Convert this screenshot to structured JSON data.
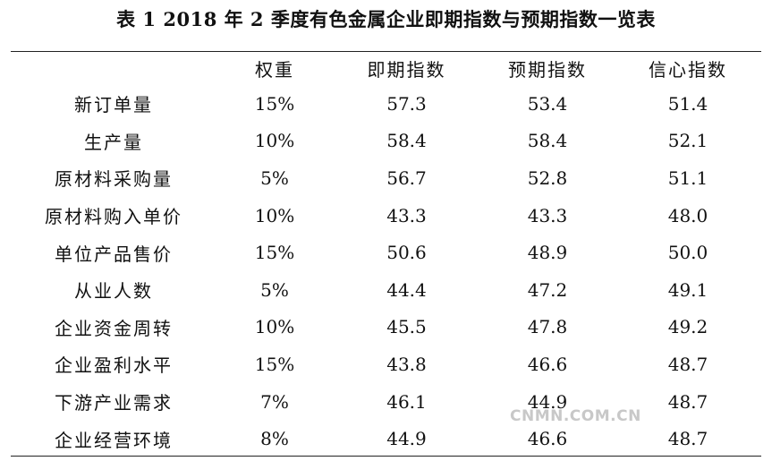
{
  "title": "表 1   2018 年 2 季度有色金属企业即期指数与预期指数一览表",
  "headers": [
    "",
    "权重",
    "即期指数",
    "预期指数",
    "信心指数"
  ],
  "rows": [
    {
      "name": "新订单量",
      "weight": "15%",
      "current": "57.3",
      "expected": "53.4",
      "confidence": "51.4"
    },
    {
      "name": "生产量",
      "weight": "10%",
      "current": "58.4",
      "expected": "58.4",
      "confidence": "52.1"
    },
    {
      "name": "原材料采购量",
      "weight": "5%",
      "current": "56.7",
      "expected": "52.8",
      "confidence": "51.1"
    },
    {
      "name": "原材料购入单价",
      "weight": "10%",
      "current": "43.3",
      "expected": "43.3",
      "confidence": "48.0"
    },
    {
      "name": "单位产品售价",
      "weight": "15%",
      "current": "50.6",
      "expected": "48.9",
      "confidence": "50.0"
    },
    {
      "name": "从业人数",
      "weight": "5%",
      "current": "44.4",
      "expected": "47.2",
      "confidence": "49.1"
    },
    {
      "name": "企业资金周转",
      "weight": "10%",
      "current": "45.5",
      "expected": "47.8",
      "confidence": "49.2"
    },
    {
      "name": "企业盈利水平",
      "weight": "15%",
      "current": "43.8",
      "expected": "46.6",
      "confidence": "48.7"
    },
    {
      "name": "下游产业需求",
      "weight": "7%",
      "current": "46.1",
      "expected": "44.9",
      "confidence": "48.7"
    },
    {
      "name": "企业经营环境",
      "weight": "8%",
      "current": "44.9",
      "expected": "46.6",
      "confidence": "48.7"
    }
  ],
  "watermark": "CNMN.COM.CN"
}
